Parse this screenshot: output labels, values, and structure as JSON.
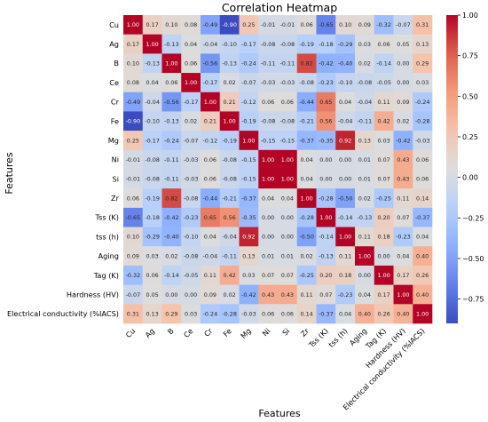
{
  "chart_data": {
    "type": "heatmap",
    "title": "Correlation Heatmap",
    "xlabel": "Features",
    "ylabel": "Features",
    "labels": [
      "Cu",
      "Ag",
      "B",
      "Ce",
      "Cr",
      "Fe",
      "Mg",
      "Ni",
      "Si",
      "Zr",
      "Tss (K)",
      "tss (h)",
      "Aging",
      "Tag (K)",
      "Hardness (HV)",
      "Electrical conductivity (%IACS)"
    ],
    "matrix": [
      [
        1.0,
        0.17,
        0.1,
        0.08,
        -0.49,
        -0.9,
        0.25,
        -0.01,
        -0.01,
        0.06,
        -0.65,
        0.1,
        0.09,
        -0.32,
        -0.07,
        0.31
      ],
      [
        0.17,
        1.0,
        -0.13,
        0.04,
        -0.04,
        -0.1,
        -0.17,
        -0.08,
        -0.08,
        -0.19,
        -0.18,
        -0.29,
        0.03,
        0.06,
        0.05,
        0.13
      ],
      [
        0.1,
        -0.13,
        1.0,
        0.06,
        -0.56,
        -0.13,
        -0.24,
        -0.11,
        -0.11,
        0.82,
        -0.42,
        -0.4,
        0.02,
        -0.14,
        0.0,
        0.29
      ],
      [
        0.08,
        0.04,
        0.06,
        1.0,
        -0.17,
        0.02,
        -0.07,
        -0.03,
        -0.03,
        -0.08,
        -0.23,
        -0.1,
        -0.08,
        -0.05,
        0.0,
        0.03
      ],
      [
        -0.49,
        -0.04,
        -0.56,
        -0.17,
        1.0,
        0.21,
        -0.12,
        0.06,
        0.06,
        -0.44,
        0.65,
        0.04,
        -0.04,
        0.11,
        0.09,
        -0.24
      ],
      [
        -0.9,
        -0.1,
        -0.13,
        0.02,
        0.21,
        1.0,
        -0.19,
        -0.08,
        -0.08,
        -0.21,
        0.56,
        -0.04,
        -0.11,
        0.42,
        0.02,
        -0.28
      ],
      [
        0.25,
        -0.17,
        -0.24,
        -0.07,
        -0.12,
        -0.19,
        1.0,
        -0.15,
        -0.15,
        -0.37,
        -0.35,
        0.92,
        0.13,
        0.03,
        -0.42,
        -0.03
      ],
      [
        -0.01,
        -0.08,
        -0.11,
        -0.03,
        0.06,
        -0.08,
        -0.15,
        1.0,
        1.0,
        0.04,
        0.0,
        0.0,
        0.01,
        0.07,
        0.43,
        0.06
      ],
      [
        -0.01,
        -0.08,
        -0.11,
        -0.03,
        0.06,
        -0.08,
        -0.15,
        1.0,
        1.0,
        0.04,
        0.0,
        0.0,
        0.01,
        0.07,
        0.43,
        0.06
      ],
      [
        0.06,
        -0.19,
        0.82,
        -0.08,
        -0.44,
        -0.21,
        -0.37,
        0.04,
        0.04,
        1.0,
        -0.28,
        -0.5,
        0.02,
        -0.25,
        0.11,
        0.14
      ],
      [
        -0.65,
        -0.18,
        -0.42,
        -0.23,
        0.65,
        0.56,
        -0.35,
        0.0,
        0.0,
        -0.28,
        1.0,
        -0.14,
        -0.13,
        0.2,
        0.07,
        -0.37
      ],
      [
        0.1,
        -0.29,
        -0.4,
        -0.1,
        0.04,
        -0.04,
        0.92,
        0.0,
        0.0,
        -0.5,
        -0.14,
        1.0,
        0.11,
        0.18,
        -0.23,
        0.04
      ],
      [
        0.09,
        0.03,
        0.02,
        -0.08,
        -0.04,
        -0.11,
        0.13,
        0.01,
        0.01,
        0.02,
        -0.13,
        0.11,
        1.0,
        0.0,
        0.04,
        0.4
      ],
      [
        -0.32,
        0.06,
        -0.14,
        -0.05,
        0.11,
        0.42,
        0.03,
        0.07,
        0.07,
        -0.25,
        0.2,
        0.18,
        0.0,
        1.0,
        0.17,
        0.26
      ],
      [
        -0.07,
        0.05,
        0.0,
        0.0,
        0.09,
        0.02,
        -0.42,
        0.43,
        0.43,
        0.11,
        0.07,
        -0.23,
        0.04,
        0.17,
        1.0,
        0.4
      ],
      [
        0.31,
        0.13,
        0.29,
        0.03,
        -0.24,
        -0.28,
        -0.03,
        0.06,
        0.06,
        0.14,
        -0.37,
        0.04,
        0.4,
        0.26,
        0.4,
        1.0
      ]
    ],
    "vmin": -0.9,
    "vmax": 1.0,
    "colormap": "coolwarm",
    "colorbar_ticks": [
      1.0,
      0.75,
      0.5,
      0.25,
      0.0,
      -0.25,
      -0.5,
      -0.75
    ],
    "colorbar_tick_labels": [
      "1.00",
      "0.75",
      "0.50",
      "0.25",
      "0.00",
      "−0.25",
      "−0.50",
      "−0.75"
    ],
    "annotated": true,
    "grid": false
  }
}
